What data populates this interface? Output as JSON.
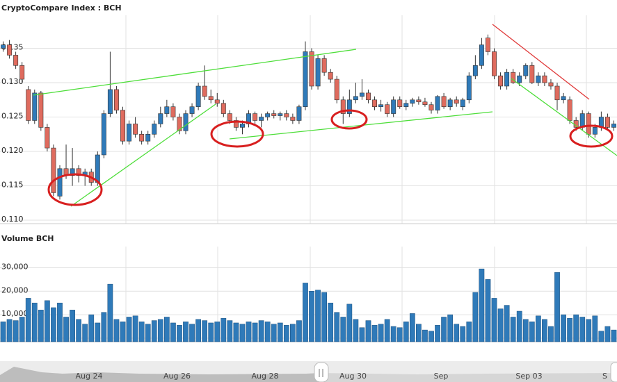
{
  "chart_data": [
    {
      "type": "candlestick",
      "title": "CryptoCompare Index : BCH",
      "up_color": "#2f7ab9",
      "down_color": "#df6b5e",
      "grid": true,
      "open": [
        0.135,
        0.1355,
        0.134,
        0.1325,
        0.129,
        0.1245,
        0.1285,
        0.1235,
        0.1205,
        0.1135,
        0.1175,
        0.1165,
        0.1175,
        0.1165,
        0.117,
        0.1155,
        0.1195,
        0.1255,
        0.129,
        0.126,
        0.1215,
        0.124,
        0.1225,
        0.1215,
        0.1225,
        0.124,
        0.1255,
        0.1265,
        0.125,
        0.123,
        0.1255,
        0.1265,
        0.1295,
        0.128,
        0.1275,
        0.127,
        0.1255,
        0.1245,
        0.1235,
        0.124,
        0.1255,
        0.1245,
        0.125,
        0.1255,
        0.1252,
        0.1255,
        0.125,
        0.1245,
        0.1265,
        0.1345,
        0.1295,
        0.1335,
        0.1315,
        0.1305,
        0.1275,
        0.1255,
        0.1275,
        0.128,
        0.1285,
        0.1275,
        0.1265,
        0.1268,
        0.1255,
        0.1275,
        0.1265,
        0.127,
        0.1275,
        0.1272,
        0.1268,
        0.126,
        0.128,
        0.1265,
        0.1275,
        0.1265,
        0.1275,
        0.131,
        0.1325,
        0.1365,
        0.1345,
        0.131,
        0.1295,
        0.1315,
        0.13,
        0.131,
        0.1325,
        0.13,
        0.131,
        0.13,
        0.1295,
        0.1275,
        0.1275,
        0.1245,
        0.1235,
        0.1255,
        0.1225,
        0.1235,
        0.125,
        0.1235
      ],
      "high": [
        0.136,
        0.1362,
        0.1345,
        0.133,
        0.1295,
        0.129,
        0.1288,
        0.124,
        0.121,
        0.118,
        0.121,
        0.1205,
        0.118,
        0.1175,
        0.1175,
        0.12,
        0.126,
        0.1345,
        0.1295,
        0.1265,
        0.1245,
        0.125,
        0.123,
        0.123,
        0.1245,
        0.1265,
        0.1275,
        0.127,
        0.1255,
        0.126,
        0.127,
        0.13,
        0.1325,
        0.129,
        0.1285,
        0.1275,
        0.126,
        0.125,
        0.1245,
        0.126,
        0.1258,
        0.1255,
        0.1258,
        0.126,
        0.1258,
        0.126,
        0.1255,
        0.1268,
        0.136,
        0.135,
        0.134,
        0.134,
        0.132,
        0.131,
        0.128,
        0.129,
        0.13,
        0.1305,
        0.129,
        0.128,
        0.1275,
        0.1272,
        0.128,
        0.128,
        0.1275,
        0.1278,
        0.128,
        0.1278,
        0.1272,
        0.1282,
        0.1285,
        0.1278,
        0.128,
        0.1278,
        0.1315,
        0.134,
        0.1365,
        0.137,
        0.135,
        0.1315,
        0.132,
        0.132,
        0.1315,
        0.1328,
        0.133,
        0.1315,
        0.1315,
        0.1305,
        0.13,
        0.1285,
        0.128,
        0.125,
        0.126,
        0.1258,
        0.124,
        0.1258,
        0.1255,
        0.1245
      ],
      "low": [
        0.1345,
        0.1335,
        0.132,
        0.13,
        0.124,
        0.124,
        0.123,
        0.12,
        0.1135,
        0.113,
        0.116,
        0.115,
        0.1155,
        0.115,
        0.115,
        0.115,
        0.119,
        0.125,
        0.1255,
        0.121,
        0.121,
        0.122,
        0.121,
        0.121,
        0.122,
        0.1235,
        0.125,
        0.1245,
        0.1225,
        0.1225,
        0.125,
        0.126,
        0.1275,
        0.127,
        0.1265,
        0.125,
        0.124,
        0.123,
        0.1225,
        0.1235,
        0.124,
        0.1235,
        0.1245,
        0.1248,
        0.1245,
        0.1245,
        0.124,
        0.124,
        0.126,
        0.129,
        0.129,
        0.131,
        0.13,
        0.127,
        0.124,
        0.125,
        0.127,
        0.1275,
        0.127,
        0.126,
        0.1258,
        0.125,
        0.125,
        0.1262,
        0.126,
        0.1265,
        0.1268,
        0.1265,
        0.1255,
        0.1255,
        0.1262,
        0.126,
        0.1265,
        0.126,
        0.127,
        0.1305,
        0.132,
        0.134,
        0.1305,
        0.129,
        0.129,
        0.1298,
        0.1295,
        0.1305,
        0.1298,
        0.1295,
        0.1295,
        0.129,
        0.126,
        0.127,
        0.124,
        0.123,
        0.123,
        0.122,
        0.122,
        0.123,
        0.123,
        0.123
      ],
      "close": [
        0.1355,
        0.134,
        0.1325,
        0.1305,
        0.1245,
        0.1285,
        0.1235,
        0.1205,
        0.114,
        0.1175,
        0.1165,
        0.1175,
        0.1165,
        0.117,
        0.1155,
        0.1195,
        0.1255,
        0.129,
        0.126,
        0.1215,
        0.124,
        0.1225,
        0.1215,
        0.1225,
        0.124,
        0.1255,
        0.1265,
        0.125,
        0.123,
        0.1255,
        0.1265,
        0.1295,
        0.128,
        0.1275,
        0.127,
        0.1255,
        0.1245,
        0.1235,
        0.124,
        0.1255,
        0.1245,
        0.125,
        0.1255,
        0.1252,
        0.1255,
        0.125,
        0.1245,
        0.1265,
        0.1345,
        0.1295,
        0.1335,
        0.1315,
        0.1305,
        0.1275,
        0.1255,
        0.1275,
        0.128,
        0.1285,
        0.1275,
        0.1265,
        0.1268,
        0.1255,
        0.1275,
        0.1265,
        0.127,
        0.1275,
        0.1272,
        0.1268,
        0.126,
        0.128,
        0.1265,
        0.1275,
        0.127,
        0.1275,
        0.131,
        0.1325,
        0.1355,
        0.1345,
        0.131,
        0.1295,
        0.1315,
        0.13,
        0.131,
        0.1325,
        0.13,
        0.131,
        0.13,
        0.1295,
        0.1275,
        0.128,
        0.1245,
        0.1235,
        0.1255,
        0.1225,
        0.1235,
        0.125,
        0.1235,
        0.124
      ],
      "ylim": [
        0.1095,
        0.1398
      ],
      "yticks": [
        {
          "value": 0.11,
          "label": "0.110"
        },
        0.115,
        {
          "value": 0.12,
          "label": "0.120"
        },
        0.125,
        {
          "value": 0.13,
          "label": "0.130"
        },
        0.135
      ]
    },
    {
      "type": "bar",
      "title": "Volume BCH",
      "color": "#2f7ab9",
      "grid": true,
      "values": [
        7000,
        8000,
        7500,
        9000,
        17000,
        15000,
        12000,
        16000,
        13000,
        15000,
        9000,
        12000,
        8000,
        6000,
        10000,
        6500,
        11000,
        23000,
        8000,
        7000,
        9000,
        9500,
        7000,
        6000,
        7500,
        8000,
        9000,
        6500,
        5500,
        7000,
        6000,
        8000,
        7500,
        6500,
        7000,
        8500,
        7500,
        6500,
        6000,
        7000,
        6500,
        7500,
        7000,
        6000,
        6500,
        5500,
        6000,
        7500,
        23500,
        20000,
        20500,
        19500,
        15000,
        11000,
        9000,
        14500,
        8000,
        4500,
        7500,
        5500,
        6000,
        8000,
        5000,
        4500,
        7000,
        10500,
        6000,
        3500,
        3000,
        5500,
        9000,
        10000,
        6000,
        5000,
        7000,
        19500,
        29500,
        25000,
        17000,
        12500,
        14000,
        9000,
        11500,
        8000,
        7000,
        9500,
        8000,
        5000,
        28000,
        10000,
        8500,
        10000,
        9000,
        8000,
        9500,
        3000,
        5000,
        3500
      ],
      "ylim": [
        -1500,
        39000
      ],
      "yticks": [
        0,
        {
          "value": 10000,
          "label": "10,000"
        },
        {
          "value": 20000,
          "label": "20,000"
        },
        {
          "value": 30000,
          "label": "30,000"
        }
      ]
    }
  ],
  "navigator": {
    "labels": [
      "Aug 24",
      "Aug 26",
      "Aug 28",
      "Aug 30",
      "Sep",
      "Sep 03",
      "S"
    ]
  }
}
